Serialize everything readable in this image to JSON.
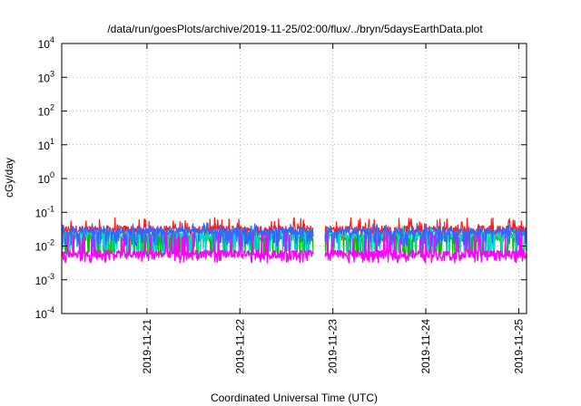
{
  "chart_data": {
    "type": "line",
    "title": "/data/run/goesPlots/archive/2019-11-25/02:00/flux/../bryn/5daysEarthData.plot",
    "xlabel": "Coordinated Universal Time (UTC)",
    "ylabel": "cGy/day",
    "yscale": "log",
    "ylim": [
      0.0001,
      10000
    ],
    "xlim": [
      "2019-11-20T02:00",
      "2019-11-25T02:00"
    ],
    "y_ticks": [
      {
        "value": 0.0001,
        "base": "10",
        "exp": "-4"
      },
      {
        "value": 0.001,
        "base": "10",
        "exp": "-3"
      },
      {
        "value": 0.01,
        "base": "10",
        "exp": "-2"
      },
      {
        "value": 0.1,
        "base": "10",
        "exp": "-1"
      },
      {
        "value": 1,
        "base": "10",
        "exp": "0"
      },
      {
        "value": 10,
        "base": "10",
        "exp": "1"
      },
      {
        "value": 100,
        "base": "10",
        "exp": "2"
      },
      {
        "value": 1000,
        "base": "10",
        "exp": "3"
      },
      {
        "value": 10000,
        "base": "10",
        "exp": "4"
      }
    ],
    "x_ticks": [
      {
        "value": "2019-11-21T00:00",
        "label": "2019-11-21"
      },
      {
        "value": "2019-11-22T00:00",
        "label": "2019-11-22"
      },
      {
        "value": "2019-11-23T00:00",
        "label": "2019-11-23"
      },
      {
        "value": "2019-11-24T00:00",
        "label": "2019-11-24"
      },
      {
        "value": "2019-11-25T00:00",
        "label": "2019-11-25"
      }
    ],
    "grid": true,
    "legend": "none",
    "series": [
      {
        "color": "#ff1a1a",
        "baseline": 0.032,
        "peak": 0.07,
        "dip": 0.018
      },
      {
        "color": "#00c000",
        "baseline": 0.018,
        "peak": 0.03,
        "dip": 0.006
      },
      {
        "color": "#00d8c8",
        "baseline": 0.022,
        "peak": 0.04,
        "dip": 0.007
      },
      {
        "color": "#3366ff",
        "baseline": 0.028,
        "peak": 0.05,
        "dip": 0.012
      },
      {
        "color": "#ff00ff",
        "baseline": 0.006,
        "peak": 0.025,
        "dip": 0.004
      }
    ]
  }
}
